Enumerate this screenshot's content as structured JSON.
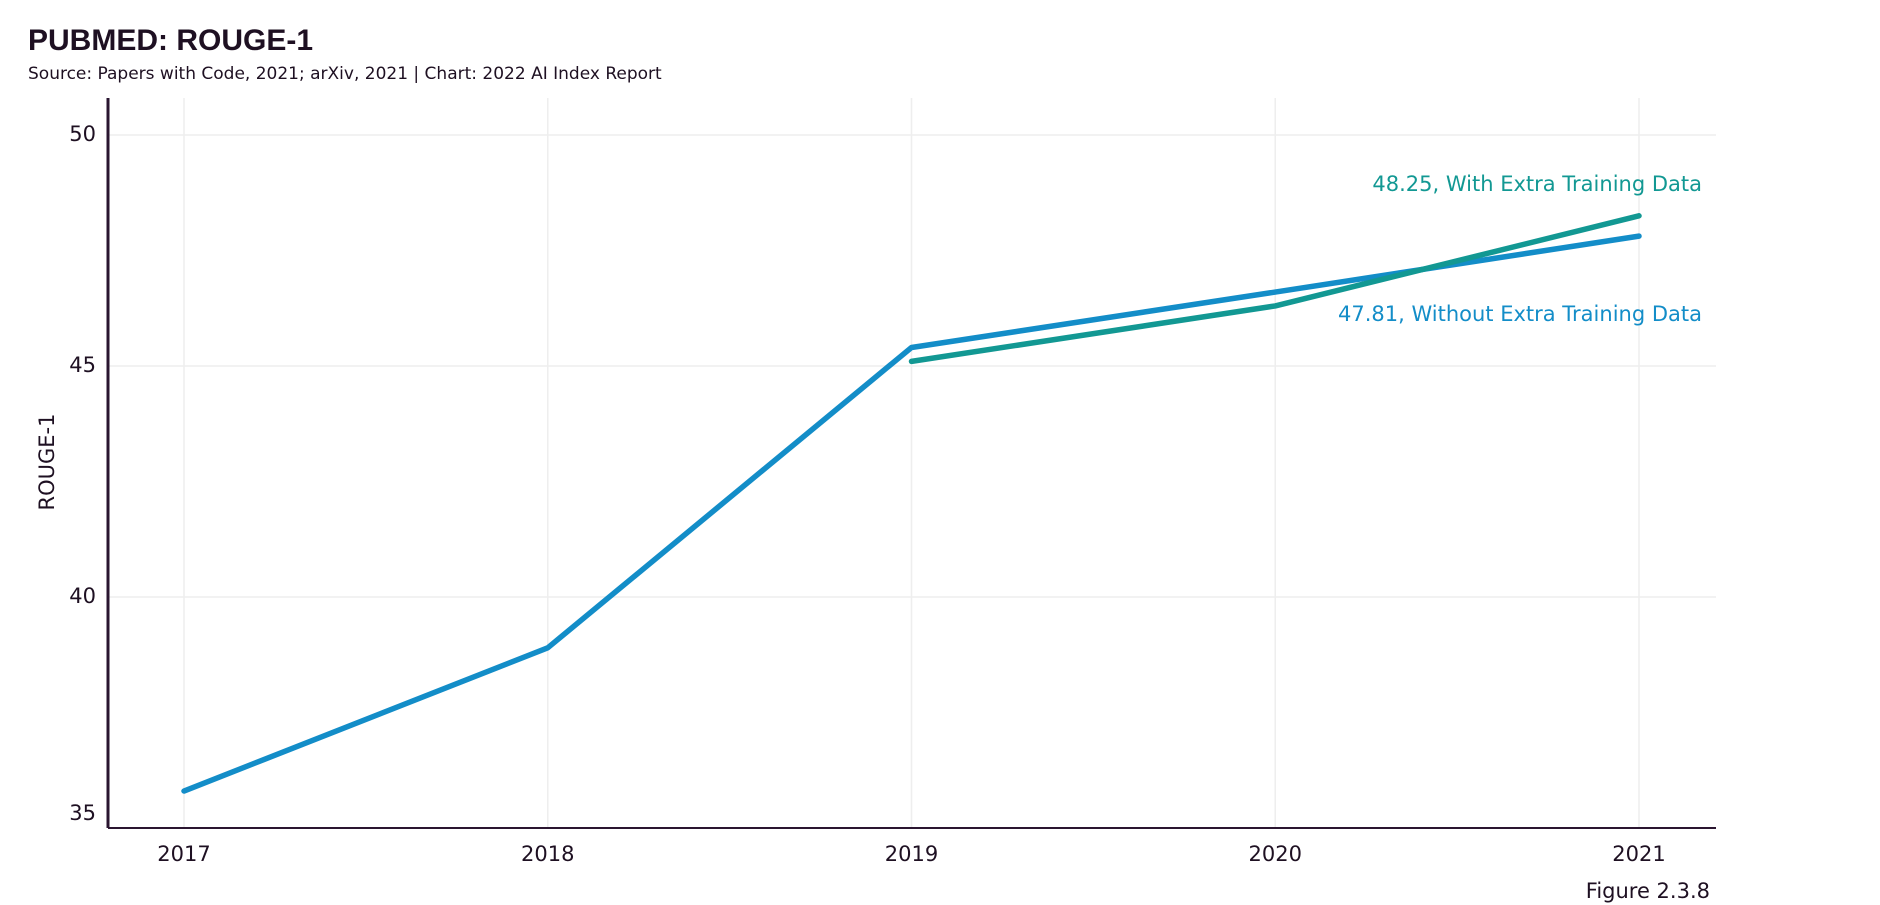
{
  "chart_data": {
    "type": "line",
    "title": "PUBMED: ROUGE-1",
    "subtitle": "Source: Papers with Code, 2021; arXiv, 2021 | Chart: 2022 AI Index Report",
    "y_label": "ROUGE-1",
    "figure_label": "Figure 2.3.8",
    "categories": [
      "2017",
      "2018",
      "2019",
      "2020",
      "2021"
    ],
    "series": [
      {
        "color": "#129893",
        "values": [
          null,
          null,
          45.1,
          46.3,
          48.25
        ],
        "value_labels": [
          null,
          null,
          null,
          null,
          "48.25, With Extra Training Data"
        ]
      },
      {
        "color": "#138dc8",
        "values": [
          35.8,
          38.9,
          45.4,
          46.6,
          47.81
        ],
        "value_labels": [
          null,
          null,
          null,
          null,
          "47.81, Without Extra Training Data"
        ]
      }
    ],
    "ylim": [
      35,
      50.8
    ],
    "yticks": [
      35,
      40,
      45,
      50
    ],
    "grid": true
  }
}
